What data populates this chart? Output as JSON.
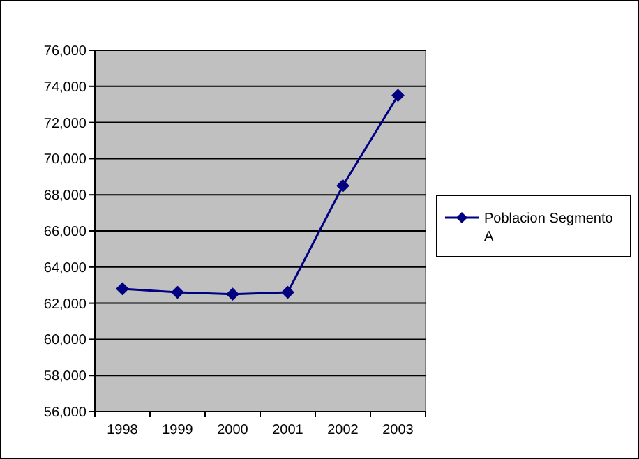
{
  "chart_data": {
    "type": "line",
    "categories": [
      "1998",
      "1999",
      "2000",
      "2001",
      "2002",
      "2003"
    ],
    "series": [
      {
        "name": "Poblacion Segmento A",
        "color": "#000080",
        "values": [
          62800,
          62600,
          62500,
          62600,
          68500,
          73500
        ]
      }
    ],
    "ylim": [
      56000,
      76000
    ],
    "yticks": [
      {
        "value": 56000,
        "label": "56,000"
      },
      {
        "value": 58000,
        "label": "58,000"
      },
      {
        "value": 60000,
        "label": "60,000"
      },
      {
        "value": 62000,
        "label": "62,000"
      },
      {
        "value": 64000,
        "label": "64,000"
      },
      {
        "value": 66000,
        "label": "66,000"
      },
      {
        "value": 68000,
        "label": "68,000"
      },
      {
        "value": 70000,
        "label": "70,000"
      },
      {
        "value": 72000,
        "label": "72,000"
      },
      {
        "value": 74000,
        "label": "74,000"
      },
      {
        "value": 76000,
        "label": "76,000"
      }
    ],
    "grid": "y",
    "legend": "right",
    "marker": "diamond",
    "line_style": "solid"
  }
}
